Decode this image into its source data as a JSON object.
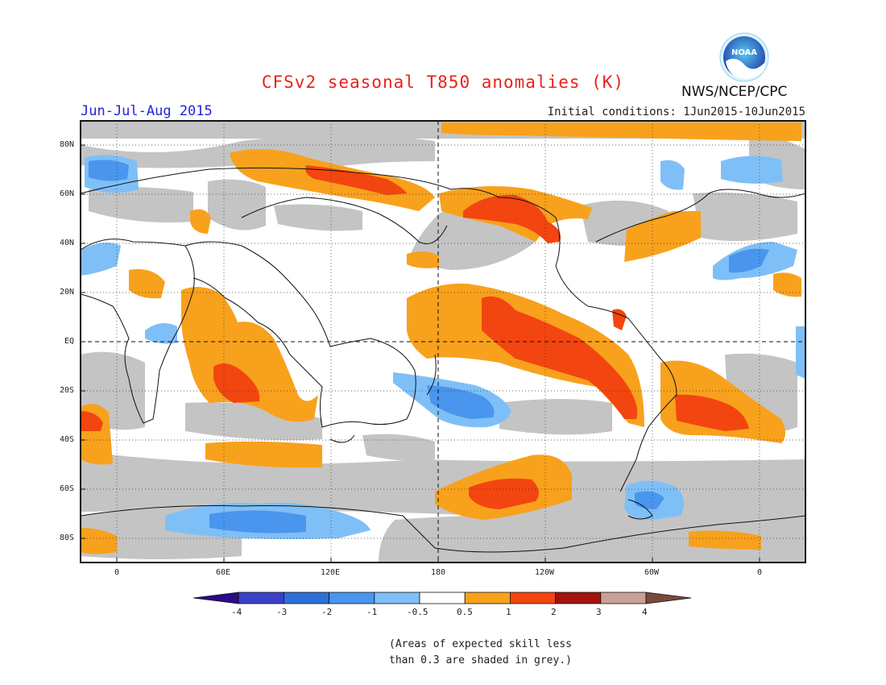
{
  "title": "CFSv2 seasonal T850 anomalies (K)",
  "season": "Jun-Jul-Aug 2015",
  "initial_conditions": "Initial conditions: 1Jun2015-10Jun2015",
  "agency": "NWS/NCEP/CPC",
  "logo_text": "NOAA",
  "lat_labels": [
    "80N",
    "60N",
    "40N",
    "20N",
    "EQ",
    "20S",
    "40S",
    "60S",
    "80S"
  ],
  "lon_labels": [
    "0",
    "60E",
    "120E",
    "180",
    "120W",
    "60W",
    "0"
  ],
  "colorbar": {
    "labels": [
      "-4",
      "-3",
      "-2",
      "-1",
      "-0.5",
      "0.5",
      "1",
      "2",
      "3",
      "4"
    ],
    "colors": [
      "#2a0a8c",
      "#3b40c8",
      "#2e6fd8",
      "#4a95ee",
      "#7fbff7",
      "#ffffff",
      "#f8a11c",
      "#f34510",
      "#a2130c",
      "#c8a095",
      "#7a4a38"
    ]
  },
  "legend_note_line1": "(Areas of expected skill less",
  "legend_note_line2": "than 0.3 are shaded in grey.)",
  "colors": {
    "grey_skill": "#c4c4c4",
    "orange_anom": "#f8a11c",
    "red_anom": "#f34510",
    "blue_light": "#7fbff7",
    "blue_mid": "#4a95ee",
    "title_red": "#e8231a",
    "season_blue": "#2222dd"
  }
}
